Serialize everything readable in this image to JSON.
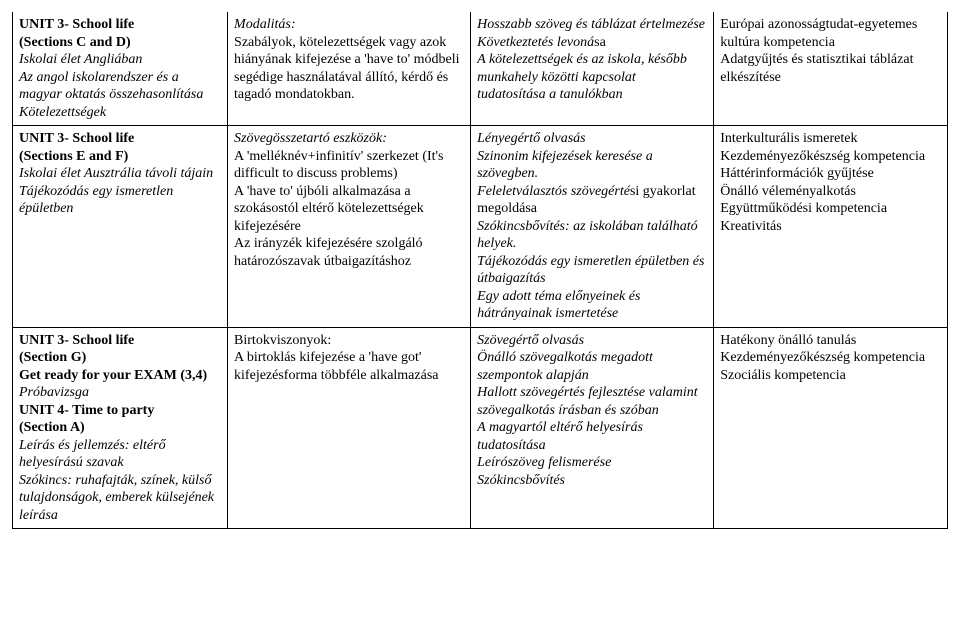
{
  "row1": {
    "c1": {
      "l1": "UNIT 3- School life",
      "l2": "(Sections C and D)",
      "l3": "Iskolai élet Angliában",
      "l4": "Az angol iskolarendszer és a magyar oktatás összehasonlítása",
      "l5": "Kötelezettségek"
    },
    "c2": {
      "l1": "Modalitás:",
      "l2": "Szabályok, kötelezettségek vagy azok hiányának kifejezése a 'have to' módbeli segédige használatával állító, kérdő és tagadó mondatokban."
    },
    "c3": {
      "l1": "Hosszabb szöveg és táblázat értelmezése",
      "l2": "Következtetés levoná",
      "l2b": "sa",
      "l3": "A kötelezettségek és az iskola, később munkahely közötti kapcsolat tudatosítása a tanulókban"
    },
    "c4": {
      "l1": "Európai azonosságtudat-egyetemes kultúra kompetencia",
      "l2": "Adatgyűjtés és statisztikai táblázat elkészítése"
    }
  },
  "row2": {
    "c1": {
      "l1": "UNIT 3- School life",
      "l2": "(Sections E and F)",
      "l3": "Iskolai élet Ausztrália távoli tájain",
      "l4": "Tájékozódás egy ismeretlen épületben"
    },
    "c2": {
      "l1": "Szövegösszetartó eszközök:",
      "l2": "A 'melléknév+infinitív' szerkezet (It's difficult to discuss problems)",
      "l3": "A 'have to' újbóli alkalmazása a szokásostól eltérő kötelezettségek kifejezésére",
      "l4": "Az irányzék kifejezésére szolgáló határozószavak útbaigazításhoz"
    },
    "c3": {
      "l1": "Lényegértő olvasás",
      "l2": "Szinonim kifejezések keresése a szövegben.",
      "l3": "Feleletválasztós szövegérté",
      "l3b": "si gyakorlat megoldása",
      "l4": "Szókincsbővítés: az iskolában található helyek.",
      "l5": "Tájékozódás egy ismeretlen épületben és útbaigazítás",
      "l6": "Egy adott téma előnyeinek és hátrányainak ismertetése"
    },
    "c4": {
      "l1": "Interkulturális ismeretek",
      "l2": "Kezdeményezőkészség kompetencia",
      "l3": "Háttérinformációk gyűjtése",
      "l4": "Önálló véleményalkotás",
      "l5": "Együttműködési kompetencia",
      "l6": "Kreativitás"
    }
  },
  "row3": {
    "c1": {
      "l1": "UNIT 3- School life",
      "l2": "(Section G)",
      "l3": "Get ready for your EXAM (3,4)",
      "l4": "Próbavizsga",
      "l5": "UNIT 4- Time to party",
      "l6": "(Section A)",
      "l7": "Leírás és jellemzés: eltérő helyesírású szavak",
      "l8a": "Szókincs:",
      "l8b": " ruhafajták, színek, külső tulajdonságok, emberek külsejének leírása"
    },
    "c2": {
      "l1": "Birtokviszonyok:",
      "l2": "A birtoklás kifejezése a 'have got' kifejezésforma többféle alkalmazása"
    },
    "c3": {
      "l1": "Szövegértő olvasás",
      "l2": "Önálló szövegalkotás megadott szempontok alapján",
      "l3": "Hallott szövegértés fejlesztése valamint szövegalkotás írásban és szóban",
      "l4": "A magyartól eltérő helyesírás tudatosítása",
      "l5": "Leírószöveg felismerése",
      "l6": "Szókincsbővítés"
    },
    "c4": {
      "l1": "Hatékony önálló tanulás",
      "l2": "Kezdeményezőkészség kompetencia",
      "l3": "Szociális kompetencia"
    }
  }
}
